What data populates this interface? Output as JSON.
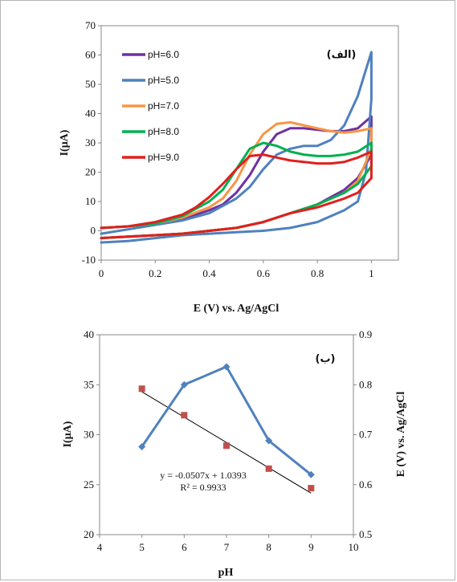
{
  "chart_data": [
    {
      "type": "line",
      "corner_label": "(الف)",
      "xlabel": "E (V) vs. Ag/AgCl",
      "ylabel": "I(μA)",
      "xlim": [
        0,
        1.1
      ],
      "ylim": [
        -10,
        70
      ],
      "x_ticks": [
        "0",
        "0.2",
        "0.4",
        "0.6",
        "0.8",
        "1"
      ],
      "y_ticks": [
        "-10",
        "0",
        "10",
        "20",
        "30",
        "40",
        "50",
        "60",
        "70"
      ],
      "legend_position": "top-left",
      "grid": false,
      "series": [
        {
          "name": "pH=6.0",
          "color": "#7030a0",
          "forward_x": [
            0,
            0.1,
            0.2,
            0.3,
            0.4,
            0.45,
            0.5,
            0.55,
            0.6,
            0.65,
            0.7,
            0.75,
            0.8,
            0.85,
            0.9,
            0.95,
            1.0
          ],
          "forward_y": [
            1,
            1.5,
            2.5,
            4,
            7,
            9,
            13,
            19,
            27,
            33,
            35,
            35,
            34.5,
            34,
            34,
            35,
            39
          ],
          "reverse_x": [
            1.0,
            0.95,
            0.9,
            0.8,
            0.7,
            0.6,
            0.5,
            0.4,
            0.3,
            0.2,
            0.1,
            0
          ],
          "reverse_y": [
            26,
            18,
            14,
            9,
            6,
            3,
            1,
            0,
            -1,
            -1.5,
            -2,
            -2.5
          ]
        },
        {
          "name": "pH=5.0",
          "color": "#4f81bd",
          "forward_x": [
            0,
            0.1,
            0.2,
            0.3,
            0.4,
            0.5,
            0.55,
            0.6,
            0.65,
            0.7,
            0.75,
            0.8,
            0.85,
            0.9,
            0.95,
            0.98,
            1.0
          ],
          "forward_y": [
            -1,
            0.5,
            2,
            3.5,
            6,
            11,
            15,
            21,
            26,
            28,
            29,
            29,
            31,
            36,
            46,
            55,
            61
          ],
          "reverse_x": [
            1.0,
            0.98,
            0.95,
            0.9,
            0.85,
            0.8,
            0.7,
            0.6,
            0.5,
            0.4,
            0.3,
            0.2,
            0.1,
            0
          ],
          "reverse_y": [
            45,
            20,
            10,
            7,
            5,
            3,
            1,
            0,
            -0.5,
            -1,
            -1.5,
            -2.5,
            -3.5,
            -4
          ]
        },
        {
          "name": "pH=7.0",
          "color": "#f79646",
          "forward_x": [
            0,
            0.1,
            0.2,
            0.3,
            0.4,
            0.45,
            0.5,
            0.55,
            0.6,
            0.65,
            0.7,
            0.75,
            0.8,
            0.85,
            0.9,
            0.95,
            1.0
          ],
          "forward_y": [
            1,
            1.5,
            2.5,
            4.5,
            8,
            11,
            17,
            26,
            33,
            36.5,
            37,
            36,
            35,
            34,
            33.5,
            34,
            35
          ],
          "reverse_x": [
            1.0,
            0.95,
            0.9,
            0.8,
            0.7,
            0.6,
            0.5,
            0.4,
            0.3,
            0.2,
            0.1,
            0
          ],
          "reverse_y": [
            28,
            17,
            13,
            9,
            6,
            3,
            1,
            0,
            -1,
            -1.5,
            -2,
            -2.5
          ]
        },
        {
          "name": "pH=8.0",
          "color": "#00b050",
          "forward_x": [
            0,
            0.1,
            0.2,
            0.3,
            0.4,
            0.45,
            0.5,
            0.55,
            0.6,
            0.65,
            0.7,
            0.75,
            0.8,
            0.85,
            0.9,
            0.95,
            1.0
          ],
          "forward_y": [
            1,
            1.5,
            2.5,
            5,
            10,
            14,
            21,
            28,
            30,
            29,
            27,
            26,
            25.5,
            25.5,
            26,
            27,
            30
          ],
          "reverse_x": [
            1.0,
            0.95,
            0.9,
            0.8,
            0.7,
            0.6,
            0.5,
            0.4,
            0.3,
            0.2,
            0.1,
            0
          ],
          "reverse_y": [
            22,
            16,
            13,
            9,
            6,
            3,
            1,
            0,
            -1,
            -1.5,
            -2,
            -2.5
          ]
        },
        {
          "name": "pH=9.0",
          "color": "#e0201d",
          "forward_x": [
            0,
            0.1,
            0.2,
            0.3,
            0.35,
            0.4,
            0.45,
            0.5,
            0.55,
            0.6,
            0.65,
            0.7,
            0.75,
            0.8,
            0.85,
            0.9,
            0.95,
            1.0
          ],
          "forward_y": [
            1,
            1.5,
            3,
            5.5,
            8,
            11.5,
            16,
            21,
            25.5,
            26,
            25,
            24,
            23.5,
            23,
            23,
            23.5,
            25,
            27
          ],
          "reverse_x": [
            1.0,
            0.95,
            0.9,
            0.8,
            0.7,
            0.6,
            0.5,
            0.4,
            0.3,
            0.2,
            0.1,
            0
          ],
          "reverse_y": [
            18,
            13,
            11,
            8,
            6,
            3,
            1,
            0,
            -1,
            -1.5,
            -2,
            -2.5
          ]
        }
      ]
    },
    {
      "type": "line+scatter",
      "corner_label": "(ب)",
      "xlabel": "pH",
      "ylabel_left": "I(μA)",
      "ylabel_right": "E (V) vs. Ag/AgCl",
      "xlim": [
        4,
        10
      ],
      "ylim_left": [
        20,
        40
      ],
      "ylim_right": [
        0.5,
        0.9
      ],
      "x_ticks": [
        "4",
        "5",
        "6",
        "7",
        "8",
        "9",
        "10"
      ],
      "y_ticks_left": [
        "20",
        "25",
        "30",
        "35",
        "40"
      ],
      "y_ticks_right": [
        "0.5",
        "0.6",
        "0.7",
        "0.8",
        "0.9"
      ],
      "grid": false,
      "current": {
        "color": "#4f81bd",
        "x": [
          5,
          6,
          7,
          8,
          9
        ],
        "y": [
          28.8,
          35.0,
          36.8,
          29.4,
          26.0
        ]
      },
      "potential": {
        "color": "#c0504d",
        "x": [
          5,
          6,
          7,
          8,
          9
        ],
        "y": [
          0.792,
          0.739,
          0.678,
          0.632,
          0.593
        ]
      },
      "trendline": {
        "color": "#000000",
        "slope": -0.0507,
        "intercept": 1.0393,
        "x_range": [
          5,
          9
        ]
      },
      "equation": "y = -0.0507x + 1.0393",
      "r_squared": "R² = 0.9933"
    }
  ]
}
